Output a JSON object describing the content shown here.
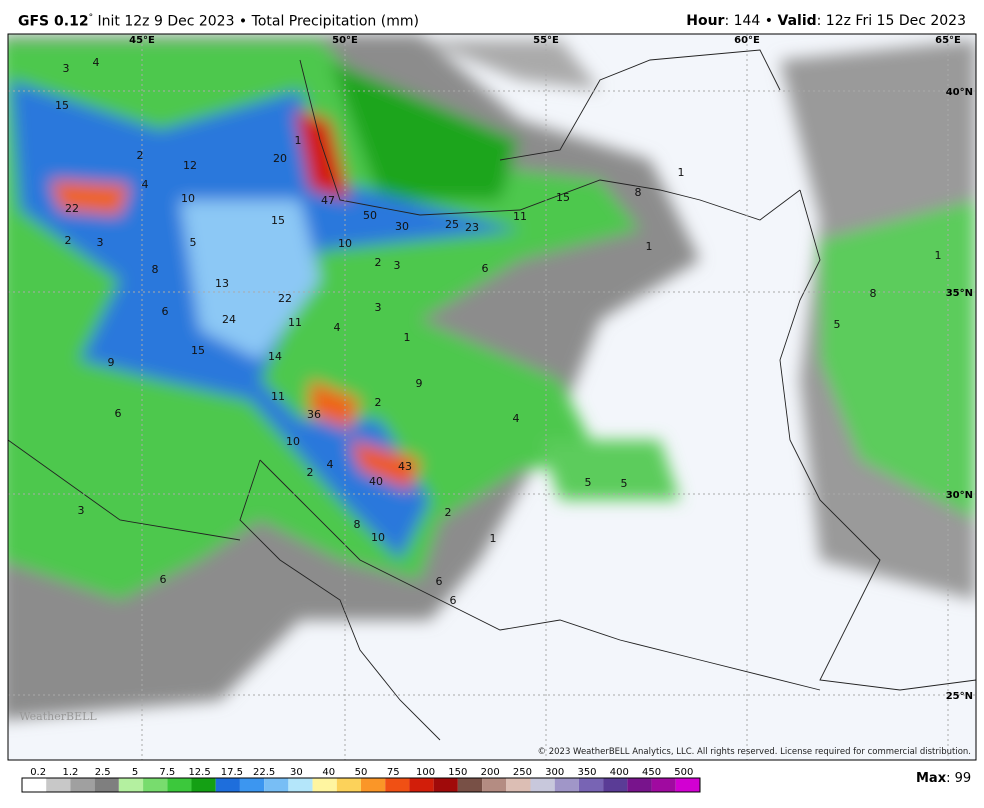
{
  "header": {
    "model": "GFS 0.12",
    "degree": "°",
    "description": " Init 12z 9 Dec 2023 • Total Precipitation (mm)",
    "hour_label": "Hour",
    "hour_text": ": 144 • ",
    "valid_label": "Valid",
    "valid_text": ": 12z Fri 15 Dec 2023"
  },
  "map": {
    "lon_labels": [
      "45°E",
      "50°E",
      "55°E",
      "60°E",
      "65°E"
    ],
    "lat_labels": [
      "40°N",
      "35°N",
      "30°N",
      "25°N"
    ],
    "value_labels": [
      3,
      4,
      15,
      12,
      2,
      20,
      1,
      4,
      10,
      22,
      47,
      50,
      30,
      25,
      23,
      11,
      15,
      8,
      1,
      15,
      10,
      5,
      2,
      3,
      2,
      3,
      6,
      1,
      8,
      13,
      22,
      24,
      11,
      4,
      3,
      1,
      6,
      15,
      14,
      9,
      9,
      11,
      36,
      2,
      4,
      6,
      10,
      43,
      4,
      2,
      40,
      5,
      5,
      3,
      2,
      8,
      1,
      10,
      6,
      6,
      6,
      1,
      8,
      5
    ],
    "copyright": "© 2023 WeatherBELL Analytics, LLC. All rights reserved. License required for commercial distribution.",
    "watermark": "WeatherBELL"
  },
  "legend": {
    "ticks": [
      0.2,
      1.2,
      2.5,
      5,
      7.5,
      12.5,
      17.5,
      22.5,
      30,
      40,
      50,
      75,
      100,
      150,
      200,
      250,
      300,
      350,
      400,
      450,
      500
    ],
    "colors": [
      "#ffffff",
      "#c8c8c8",
      "#a0a0a0",
      "#7f7f7f",
      "#b4f0a0",
      "#78dc6e",
      "#3cc83c",
      "#14a014",
      "#1e6edc",
      "#3c96f0",
      "#78bef5",
      "#b4e6fa",
      "#fff5a0",
      "#fcd25a",
      "#fa9628",
      "#f05014",
      "#d21e0a",
      "#a00a0a",
      "#785046",
      "#b48c82",
      "#dcbeb4",
      "#c8c8dc",
      "#a096c8",
      "#7864b4",
      "#5a3c96",
      "#78148c",
      "#a00aa0",
      "#d200d2"
    ],
    "max_label": "Max",
    "max_text": ": 99"
  }
}
